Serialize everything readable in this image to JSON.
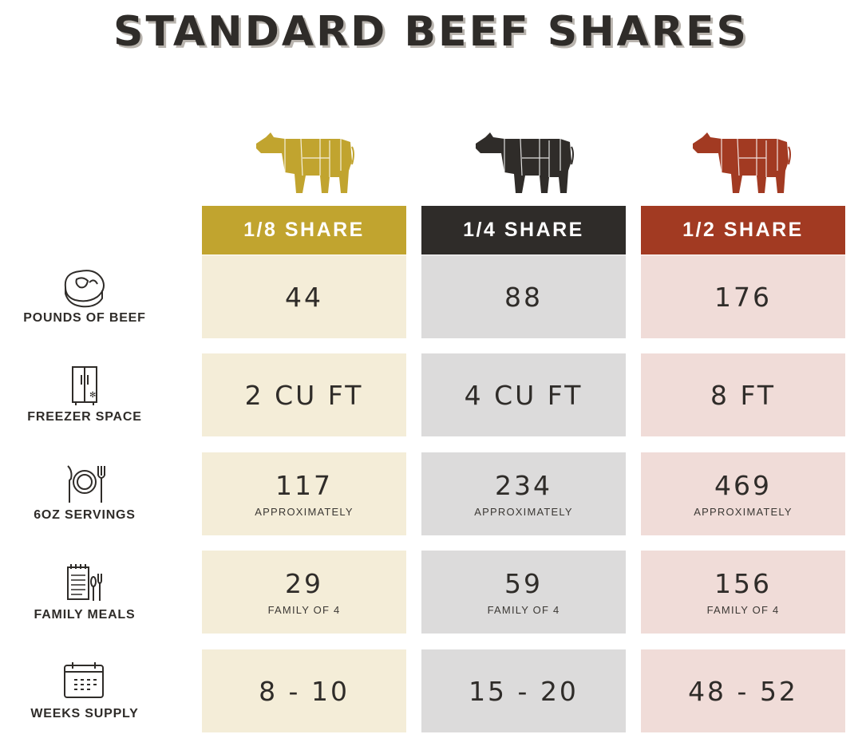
{
  "title": "STANDARD BEEF SHARES",
  "colors": {
    "gold": "#c1a42f",
    "dark": "#2f2c29",
    "red": "#a23a22",
    "gold_bg": "#f4edd8",
    "dark_bg": "#dcdbdb",
    "red_bg": "#f0dcd8"
  },
  "columns": [
    {
      "label": "1/8 SHARE",
      "color": "gold"
    },
    {
      "label": "1/4 SHARE",
      "color": "dark"
    },
    {
      "label": "1/2 SHARE",
      "color": "red"
    }
  ],
  "rows": [
    {
      "label": "POUNDS OF BEEF",
      "icon": "steak-icon",
      "values": [
        {
          "val": "44",
          "sub": ""
        },
        {
          "val": "88",
          "sub": ""
        },
        {
          "val": "176",
          "sub": ""
        }
      ]
    },
    {
      "label": "FREEZER SPACE",
      "icon": "freezer-icon",
      "values": [
        {
          "val": "2 CU FT",
          "sub": ""
        },
        {
          "val": "4 CU FT",
          "sub": ""
        },
        {
          "val": "8 FT",
          "sub": ""
        }
      ]
    },
    {
      "label": "6OZ SERVINGS",
      "icon": "plate-cutlery-icon",
      "values": [
        {
          "val": "117",
          "sub": "APPROXIMATELY"
        },
        {
          "val": "234",
          "sub": "APPROXIMATELY"
        },
        {
          "val": "469",
          "sub": "APPROXIMATELY"
        }
      ]
    },
    {
      "label": "FAMILY MEALS",
      "icon": "menu-cutlery-icon",
      "values": [
        {
          "val": "29",
          "sub": "FAMILY OF 4"
        },
        {
          "val": "59",
          "sub": "FAMILY OF 4"
        },
        {
          "val": "156",
          "sub": "FAMILY OF 4"
        }
      ]
    },
    {
      "label": "WEEKS SUPPLY",
      "icon": "calendar-icon",
      "values": [
        {
          "val": "8 - 10",
          "sub": ""
        },
        {
          "val": "15 - 20",
          "sub": ""
        },
        {
          "val": "48 - 52",
          "sub": ""
        }
      ]
    }
  ]
}
